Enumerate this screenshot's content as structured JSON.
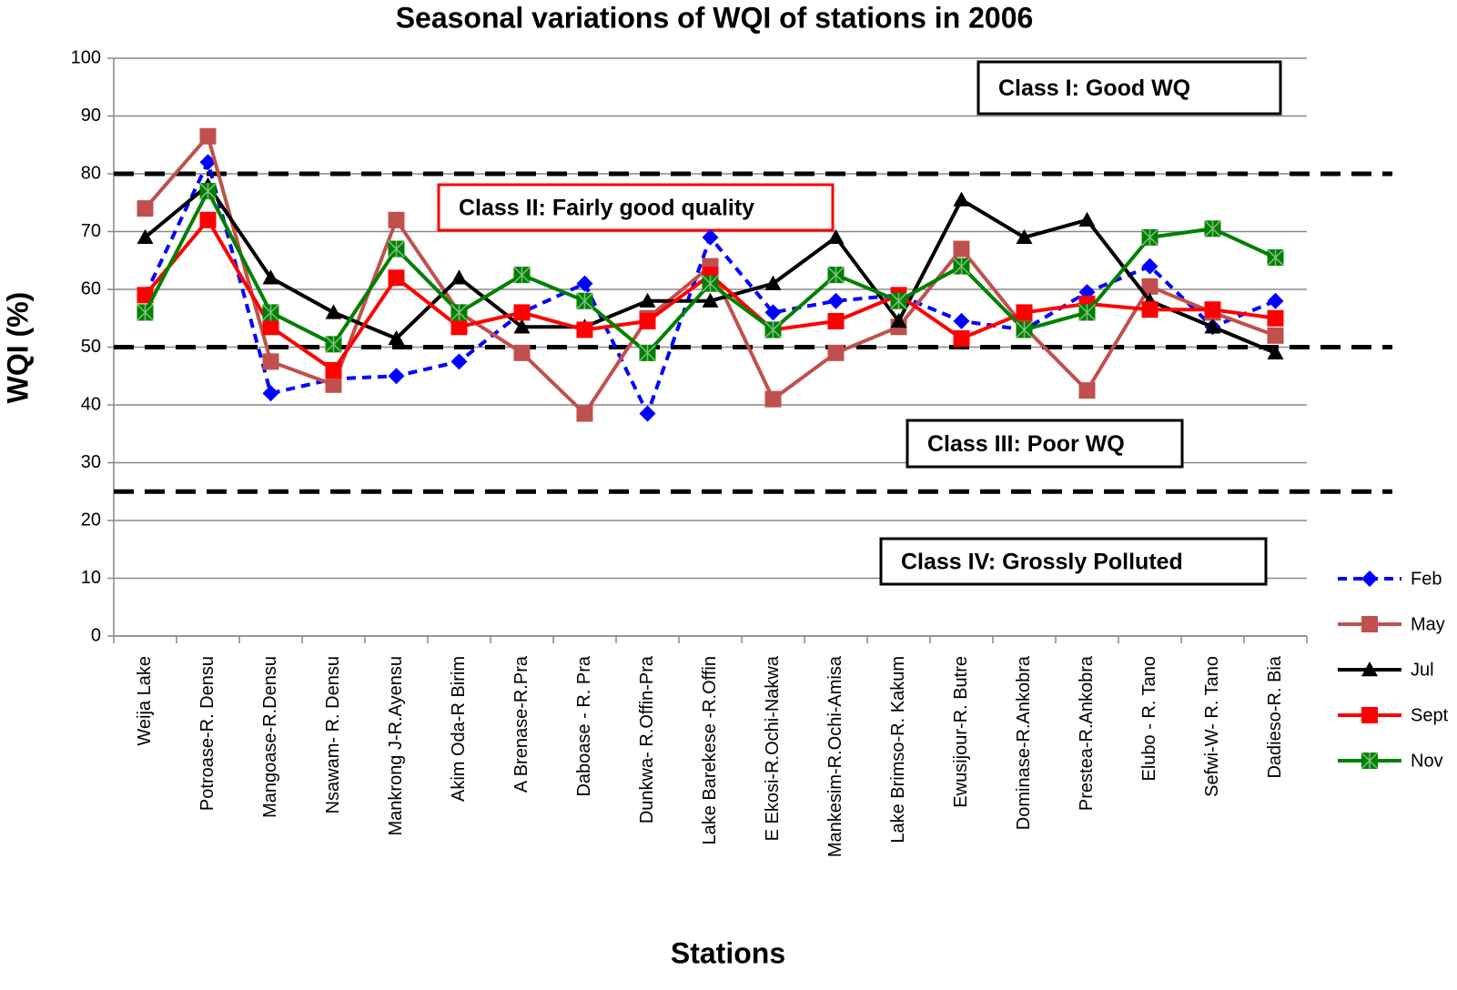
{
  "chart_data": {
    "type": "line",
    "title": "Seasonal variations of WQI of stations in 2006",
    "x_label": "Stations",
    "y_label": "WQI (%)",
    "categories": [
      "Weija Lake",
      "Potroase-R. Densu",
      "Mangoase-R.Densu",
      "Nsawam- R. Densu",
      "Mankrong J-R.Ayensu",
      "Akim Oda-R Birim",
      "A Brenase-R.Pra",
      "Daboase - R. Pra",
      "Dunkwa- R.Offin-Pra",
      "Lake Barekese -R.Offin",
      "E Ekosi-R.Ochi-Nakwa",
      "Mankesim-R.Ochi-Amisa",
      "Lake Brimso-R. Kakum",
      "Ewusijour-R. Butre",
      "Dominase-R.Ankobra",
      "Prestea-R.Ankobra",
      "Elubo - R. Tano",
      "Sefwi-W- R. Tano",
      "Dadieso-R. Bia"
    ],
    "series": [
      {
        "name": "Feb",
        "color": "#0000ff",
        "marker": "diamond",
        "dashed": true,
        "values": [
          59,
          82,
          42,
          44.5,
          45,
          47.5,
          56,
          61,
          38.5,
          69,
          56,
          58,
          59,
          54.5,
          53,
          59.5,
          64,
          53.5,
          58
        ]
      },
      {
        "name": "May",
        "color": "#c0504d",
        "marker": "square",
        "dashed": false,
        "values": [
          74,
          86.5,
          47.5,
          43.5,
          72,
          56,
          49,
          38.5,
          55,
          64,
          41,
          49,
          53.5,
          67,
          53.5,
          42.5,
          60.5,
          56,
          52
        ]
      },
      {
        "name": "Jul",
        "color": "#000000",
        "marker": "triangle",
        "dashed": false,
        "values": [
          69,
          78,
          62,
          56,
          51.5,
          62,
          53.5,
          53.5,
          58,
          58,
          61,
          69,
          54.5,
          75.5,
          69,
          72,
          58,
          53.5,
          49
        ]
      },
      {
        "name": "Sept",
        "color": "#ff0000",
        "marker": "square",
        "dashed": false,
        "values": [
          59,
          72,
          53.5,
          46,
          62,
          53.5,
          56,
          53,
          54.5,
          62.5,
          53,
          54.5,
          59,
          51.5,
          56,
          57.5,
          56.5,
          56.5,
          55
        ]
      },
      {
        "name": "Nov",
        "color": "#008000",
        "marker": "star-square",
        "dashed": false,
        "values": [
          56,
          77,
          56,
          50.5,
          67,
          56,
          62.5,
          58,
          49,
          61,
          53,
          62.5,
          58,
          64,
          53,
          56,
          69,
          70.5,
          65.5
        ]
      }
    ],
    "ylim": [
      0,
      100
    ],
    "yticks": [
      0,
      10,
      20,
      30,
      40,
      50,
      60,
      70,
      80,
      90,
      100
    ],
    "grid": true,
    "legend": "right",
    "thresholds": [
      80,
      50,
      25
    ],
    "annotations": [
      {
        "text": "Class I: Good WQ",
        "color": "#000000"
      },
      {
        "text": "Class II: Fairly good quality",
        "color": "#ff0000"
      },
      {
        "text": "Class III: Poor WQ",
        "color": "#000000"
      },
      {
        "text": "Class IV: Grossly Polluted",
        "color": "#000000"
      }
    ]
  }
}
